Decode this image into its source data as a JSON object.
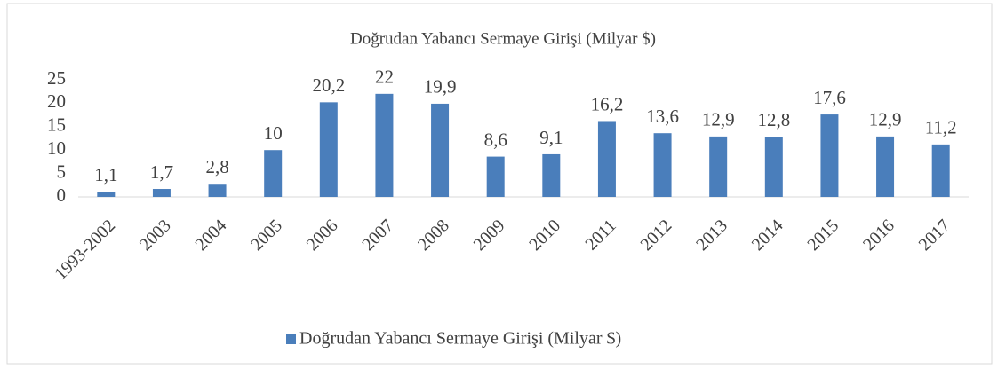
{
  "chart_data": {
    "type": "bar",
    "title": "Doğrudan Yabancı Sermaye Girişi (Milyar $)",
    "categories": [
      "1993-2002",
      "2003",
      "2004",
      "2005",
      "2006",
      "2007",
      "2008",
      "2009",
      "2010",
      "2011",
      "2012",
      "2013",
      "2014",
      "2015",
      "2016",
      "2017"
    ],
    "series": [
      {
        "name": "Doğrudan Yabancı Sermaye Girişi (Milyar $)",
        "color": "#4a7ebb",
        "values": [
          1.1,
          1.7,
          2.8,
          10,
          20.2,
          22,
          19.9,
          8.6,
          9.1,
          16.2,
          13.6,
          12.9,
          12.8,
          17.6,
          12.9,
          11.2
        ],
        "value_labels": [
          "1,1",
          "1,7",
          "2,8",
          "10",
          "20,2",
          "22",
          "19,9",
          "8,6",
          "9,1",
          "16,2",
          "13,6",
          "12,9",
          "12,8",
          "17,6",
          "12,9",
          "11,2"
        ]
      }
    ],
    "ylim": [
      0,
      25
    ],
    "yticks": [
      0,
      5,
      10,
      15,
      20,
      25
    ],
    "grid": false,
    "legend": "bottom"
  }
}
